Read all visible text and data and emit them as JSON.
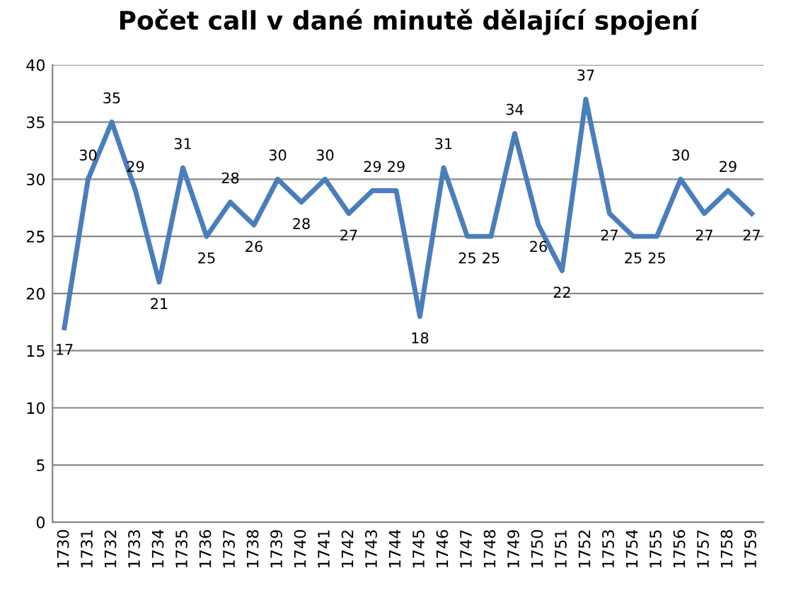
{
  "chart_data": {
    "type": "line",
    "title": "Počet call v dané minutě dělající spojení",
    "categories": [
      "1730",
      "1731",
      "1732",
      "1733",
      "1734",
      "1735",
      "1736",
      "1737",
      "1738",
      "1739",
      "1740",
      "1741",
      "1742",
      "1743",
      "1744",
      "1745",
      "1746",
      "1747",
      "1748",
      "1749",
      "1750",
      "1751",
      "1752",
      "1753",
      "1754",
      "1755",
      "1756",
      "1757",
      "1758",
      "1759"
    ],
    "series": [
      {
        "color": "#4a7ebb",
        "values": [
          17,
          30,
          35,
          29,
          21,
          31,
          25,
          28,
          26,
          30,
          28,
          30,
          27,
          29,
          29,
          18,
          31,
          25,
          25,
          34,
          26,
          22,
          37,
          27,
          25,
          25,
          30,
          27,
          29,
          27
        ]
      }
    ],
    "ylim": [
      0,
      40
    ],
    "yticks": [
      0,
      5,
      10,
      15,
      20,
      25,
      30,
      35,
      40
    ],
    "grid": "y",
    "data_labels": true,
    "marker": "none",
    "line_style": "solid"
  }
}
